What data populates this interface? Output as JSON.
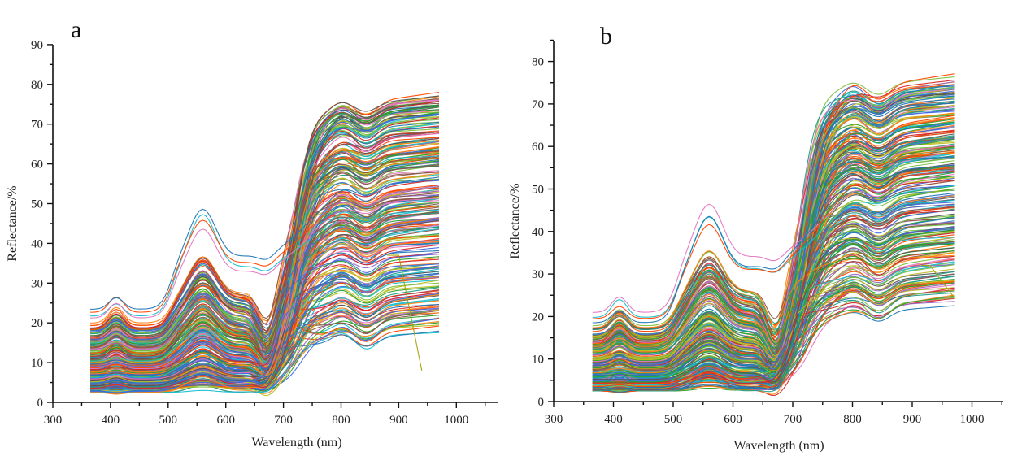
{
  "chart_data": [
    {
      "type": "line",
      "panel_label": "a",
      "title": "",
      "xlabel": "Wavelength (nm)",
      "ylabel": "Reflectance/%",
      "xlim": [
        300,
        1050
      ],
      "ylim": [
        0,
        90
      ],
      "xticks": [
        300,
        400,
        500,
        600,
        700,
        800,
        900,
        1000
      ],
      "yticks": [
        0,
        10,
        20,
        30,
        40,
        50,
        60,
        70,
        80,
        90
      ],
      "x_range_of_data": [
        365,
        970
      ],
      "grid": false,
      "legend": "none",
      "description": "Hundreds of reflectance spectra (one per sample), typical vegetation shape: green peak near 550-570 nm, red absorption minimum near 670 nm, red-edge rise 700-760 nm, NIR plateau 780-970 nm.",
      "envelope": {
        "at_365nm": [
          2.5,
          23
        ],
        "green_peak_560nm": [
          5,
          41
        ],
        "red_min_670nm": [
          2.5,
          42
        ],
        "nir_810nm": [
          14,
          77
        ],
        "nir_970nm": [
          17.5,
          80
        ]
      },
      "series_count_shown": 260,
      "anomalies": [
        {
          "name": "declining-outlier",
          "description": "curve dropping from ~37 at 900 nm to ~8 at 940 nm"
        }
      ]
    },
    {
      "type": "line",
      "panel_label": "b",
      "title": "",
      "xlabel": "Wavelength (nm)",
      "ylabel": "Reflectance/%",
      "xlim": [
        300,
        1050
      ],
      "ylim": [
        0,
        85
      ],
      "xticks": [
        300,
        400,
        500,
        600,
        700,
        800,
        900,
        1000
      ],
      "yticks": [
        0,
        10,
        20,
        30,
        40,
        50,
        60,
        70,
        80
      ],
      "x_range_of_data": [
        365,
        970
      ],
      "grid": false,
      "legend": "none",
      "description": "Hundreds of reflectance spectra (one per sample) with same vegetation shape; tighter NIR plateau.",
      "envelope": {
        "at_365nm": [
          3,
          21
        ],
        "green_peak_570nm": [
          5,
          38
        ],
        "red_min_670nm": [
          3,
          44
        ],
        "nir_810nm": [
          19,
          77
        ],
        "nir_970nm": [
          21.5,
          78
        ]
      },
      "series_count_shown": 260,
      "anomalies": [
        {
          "name": "declining-outlier",
          "description": "curve dropping from ~32 at 930 nm to ~24.5 at 970 nm"
        }
      ]
    }
  ],
  "palette": [
    "#1f77b4",
    "#ff7f0e",
    "#2ca02c",
    "#d62728",
    "#9467bd",
    "#17becf",
    "#bcbd22",
    "#555555",
    "#e377c2",
    "#8c564b",
    "#1f9e89",
    "#ff4500",
    "#4169e1",
    "#7fbf3f"
  ]
}
